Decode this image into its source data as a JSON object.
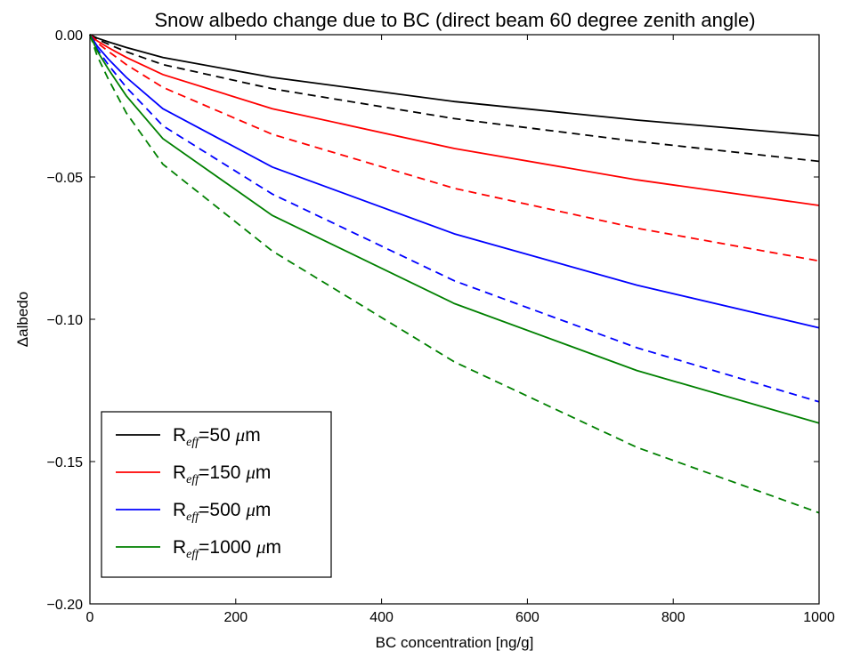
{
  "chart_data": {
    "type": "line",
    "title": "Snow albedo change due to BC (direct beam 60 degree zenith angle)",
    "xlabel": "BC concentration [ng/g]",
    "ylabel": "Δalbedo",
    "xlim": [
      0,
      1000
    ],
    "ylim": [
      -0.2,
      0.0
    ],
    "xticks": [
      0,
      200,
      400,
      600,
      800,
      1000
    ],
    "xtick_labels": [
      "0",
      "200",
      "400",
      "600",
      "800",
      "1000"
    ],
    "yticks": [
      0.0,
      -0.05,
      -0.1,
      -0.15,
      -0.2
    ],
    "ytick_labels": [
      "0.00",
      "−0.05",
      "−0.10",
      "−0.15",
      "−0.20"
    ],
    "grid": false,
    "legend_position": "bottom-left",
    "x": [
      0,
      10,
      25,
      50,
      100,
      250,
      500,
      750,
      1000
    ],
    "series": [
      {
        "name": "R_eff=50 μm",
        "legend_base": "R",
        "legend_sub": "eff",
        "legend_value": "=50 ",
        "legend_unit": "μm",
        "color": "#000000",
        "style": "solid",
        "values": [
          0.0,
          -0.0012,
          -0.0025,
          -0.0045,
          -0.008,
          -0.015,
          -0.0235,
          -0.03,
          -0.0355
        ]
      },
      {
        "color": "#000000",
        "style": "dashed",
        "values": [
          0.0,
          -0.0016,
          -0.0033,
          -0.006,
          -0.0105,
          -0.019,
          -0.0295,
          -0.0375,
          -0.0445
        ]
      },
      {
        "name": "R_eff=150 μm",
        "legend_base": "R",
        "legend_sub": "eff",
        "legend_value": "=150 ",
        "legend_unit": "μm",
        "color": "#ff0000",
        "style": "solid",
        "values": [
          0.0,
          -0.0022,
          -0.0045,
          -0.008,
          -0.014,
          -0.026,
          -0.04,
          -0.051,
          -0.06
        ]
      },
      {
        "color": "#ff0000",
        "style": "dashed",
        "values": [
          0.0,
          -0.0028,
          -0.0058,
          -0.0105,
          -0.0185,
          -0.035,
          -0.054,
          -0.068,
          -0.0795
        ]
      },
      {
        "name": "R_eff=500 μm",
        "legend_base": "R",
        "legend_sub": "eff",
        "legend_value": "=500 ",
        "legend_unit": "μm",
        "color": "#0000ff",
        "style": "solid",
        "values": [
          0.0,
          -0.004,
          -0.0085,
          -0.015,
          -0.026,
          -0.0465,
          -0.07,
          -0.088,
          -0.103
        ]
      },
      {
        "color": "#0000ff",
        "style": "dashed",
        "values": [
          0.0,
          -0.005,
          -0.0105,
          -0.0185,
          -0.032,
          -0.056,
          -0.0865,
          -0.11,
          -0.129
        ]
      },
      {
        "name": "R_eff=1000 μm",
        "legend_base": "R",
        "legend_sub": "eff",
        "legend_value": "=1000 ",
        "legend_unit": "μm",
        "color": "#008000",
        "style": "solid",
        "values": [
          0.0,
          -0.0057,
          -0.012,
          -0.0215,
          -0.0365,
          -0.0635,
          -0.0945,
          -0.118,
          -0.1365
        ]
      },
      {
        "color": "#008000",
        "style": "dashed",
        "values": [
          0.0,
          -0.0075,
          -0.0155,
          -0.0275,
          -0.0455,
          -0.076,
          -0.115,
          -0.145,
          -0.168
        ]
      }
    ]
  }
}
